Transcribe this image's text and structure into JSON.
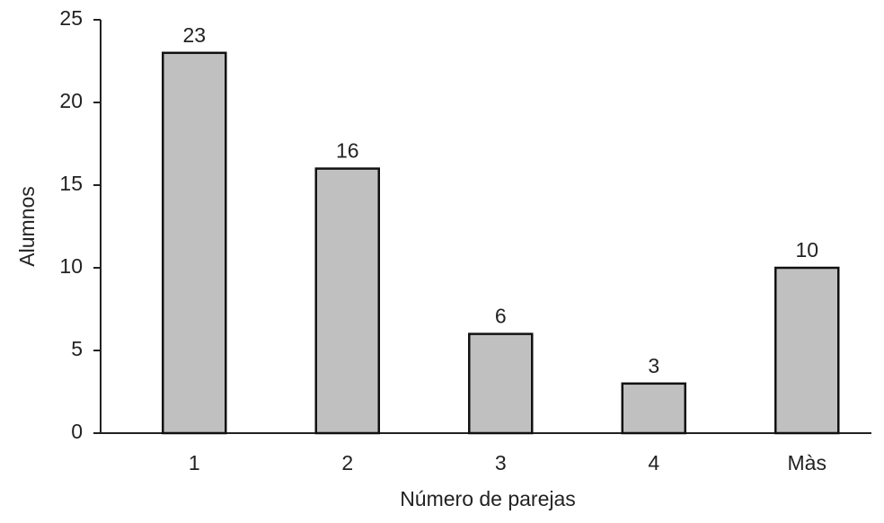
{
  "chart_data": {
    "type": "bar",
    "x_label": "Número de parejas",
    "y_label": "Alumnos",
    "categories": [
      "1",
      "2",
      "3",
      "4",
      "Màs"
    ],
    "values": [
      23,
      16,
      6,
      3,
      10
    ],
    "color": "#c0c0c0",
    "ylim": [
      0,
      25
    ],
    "yticks": [
      0,
      5,
      10,
      15,
      20,
      25
    ],
    "grid": false
  }
}
